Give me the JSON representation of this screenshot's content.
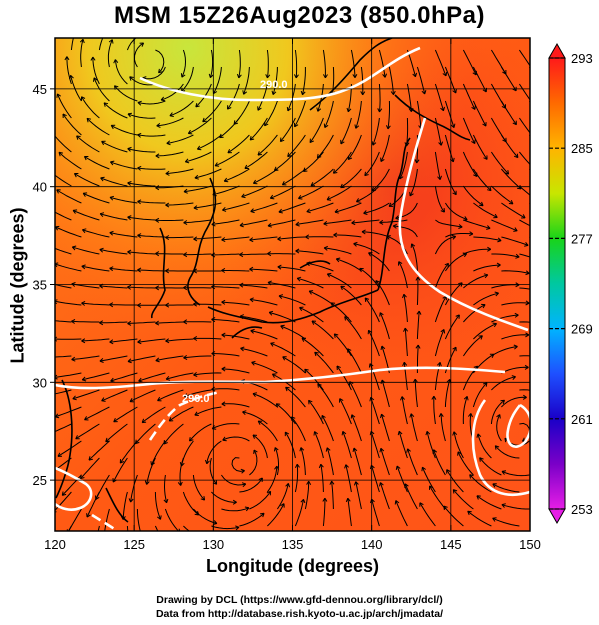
{
  "title": "MSM 15Z26Aug2023 (850.0hPa)",
  "x_axis": {
    "label": "Longitude (degrees)",
    "ticks": [
      "120",
      "125",
      "130",
      "135",
      "140",
      "145",
      "150"
    ],
    "values": [
      120,
      125,
      130,
      135,
      140,
      145,
      150
    ],
    "range": [
      120,
      150
    ]
  },
  "y_axis": {
    "label": "Latitude  (degrees)",
    "ticks": [
      "25",
      "30",
      "35",
      "40",
      "45"
    ],
    "values": [
      25,
      30,
      35,
      40,
      45
    ],
    "range": [
      22.4,
      47.6
    ]
  },
  "colorbar": {
    "ticks": [
      "293",
      "285",
      "277",
      "269",
      "261",
      "253"
    ],
    "values": [
      293,
      285,
      277,
      269,
      261,
      253
    ],
    "colors": [
      "#ff1a1a",
      "#ff6a00",
      "#ffd000",
      "#a8e600",
      "#19d419",
      "#00c8a0",
      "#00b4ff",
      "#1e50ff",
      "#1a00c8",
      "#7a00c8",
      "#e61ee6"
    ]
  },
  "contour": {
    "label": "290.0",
    "color": "#ffffff"
  },
  "credits": {
    "line1": "Drawing by DCL (https://www.gfd-dennou.org/library/dcl/)",
    "line2": "Data from http://database.rish.kyoto-u.ac.jp/arch/jmadata/"
  }
}
